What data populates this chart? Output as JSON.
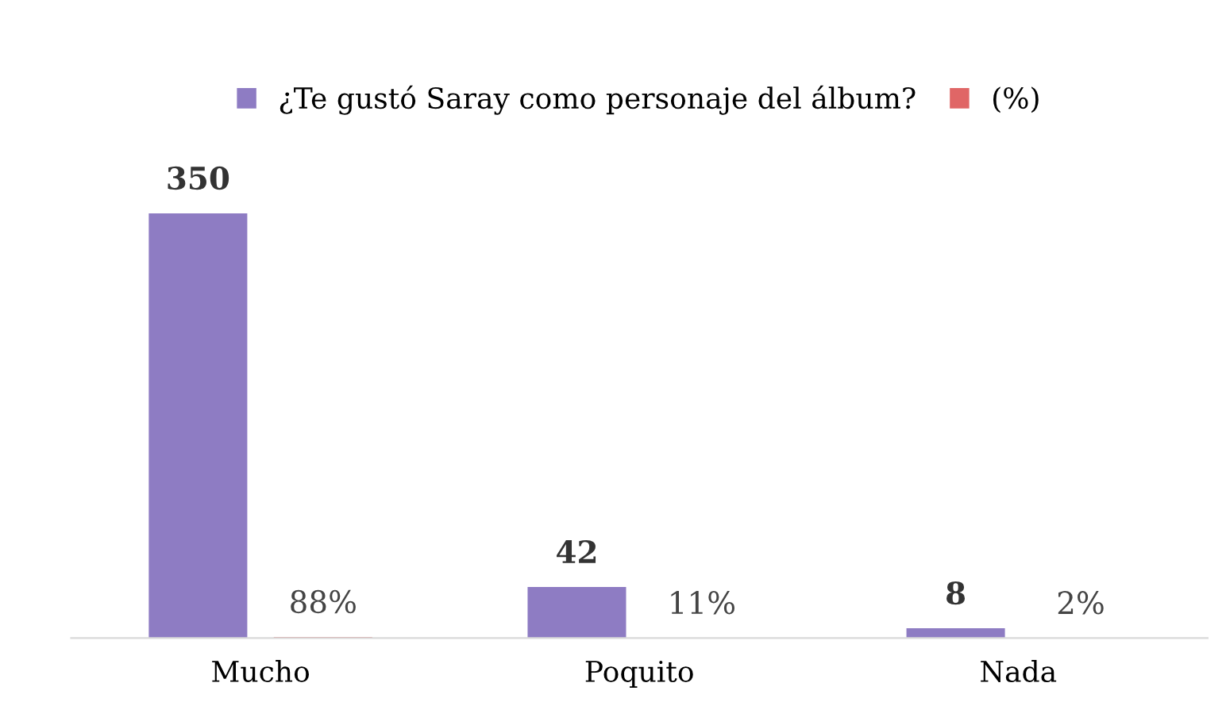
{
  "chart_data": {
    "type": "bar",
    "categories": [
      "Mucho",
      "Poquito",
      "Nada"
    ],
    "series": [
      {
        "name": "¿Te gustó Saray como personaje del álbum?",
        "color": "#8e7cc3",
        "values": [
          350,
          42,
          8
        ],
        "value_labels": [
          "350",
          "42",
          "8"
        ]
      },
      {
        "name": "(%)",
        "color": "#e06666",
        "values": [
          0.88,
          0.11,
          0.02
        ],
        "value_labels": [
          "88%",
          "11%",
          "2%"
        ]
      }
    ],
    "tick_labels": "x",
    "grid": false,
    "legend": "top"
  }
}
